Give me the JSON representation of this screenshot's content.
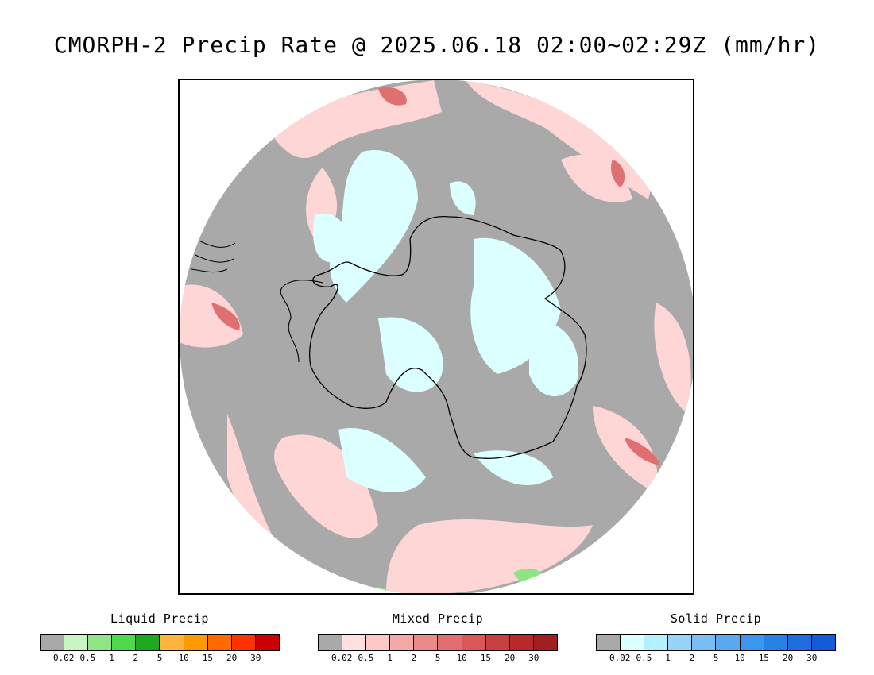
{
  "title": "CMORPH-2 Precip Rate @ 2025.06.18 02:00~02:29Z (mm/hr)",
  "map": {
    "projection": "south-polar-stereographic",
    "background_color": "#a9a9a9",
    "coastline_color": "#000000"
  },
  "legends": [
    {
      "title": "Liquid Precip",
      "colors": [
        "#a9a9a9",
        "#c8f5c0",
        "#8ee585",
        "#4ed84a",
        "#1fa81f",
        "#ffb43c",
        "#ff9a00",
        "#ff6a00",
        "#ff3200",
        "#cc0000"
      ],
      "ticks": [
        "0.02",
        "0.5",
        "1",
        "2",
        "5",
        "10",
        "15",
        "20",
        "30"
      ]
    },
    {
      "title": "Mixed Precip",
      "colors": [
        "#a9a9a9",
        "#ffe0e0",
        "#ffc8c8",
        "#f5a8a8",
        "#ec8a8a",
        "#e07070",
        "#d85858",
        "#c84040",
        "#b82a2a",
        "#a02020"
      ],
      "ticks": [
        "0.02",
        "0.5",
        "1",
        "2",
        "5",
        "10",
        "15",
        "20",
        "30"
      ]
    },
    {
      "title": "Solid Precip",
      "colors": [
        "#a9a9a9",
        "#dcffff",
        "#b4f0ff",
        "#96d2fa",
        "#78bef5",
        "#5aa8f0",
        "#3c96eb",
        "#2882e6",
        "#1e6ee1",
        "#145adc"
      ],
      "ticks": [
        "0.02",
        "0.5",
        "1",
        "2",
        "5",
        "10",
        "15",
        "20",
        "30"
      ]
    }
  ]
}
